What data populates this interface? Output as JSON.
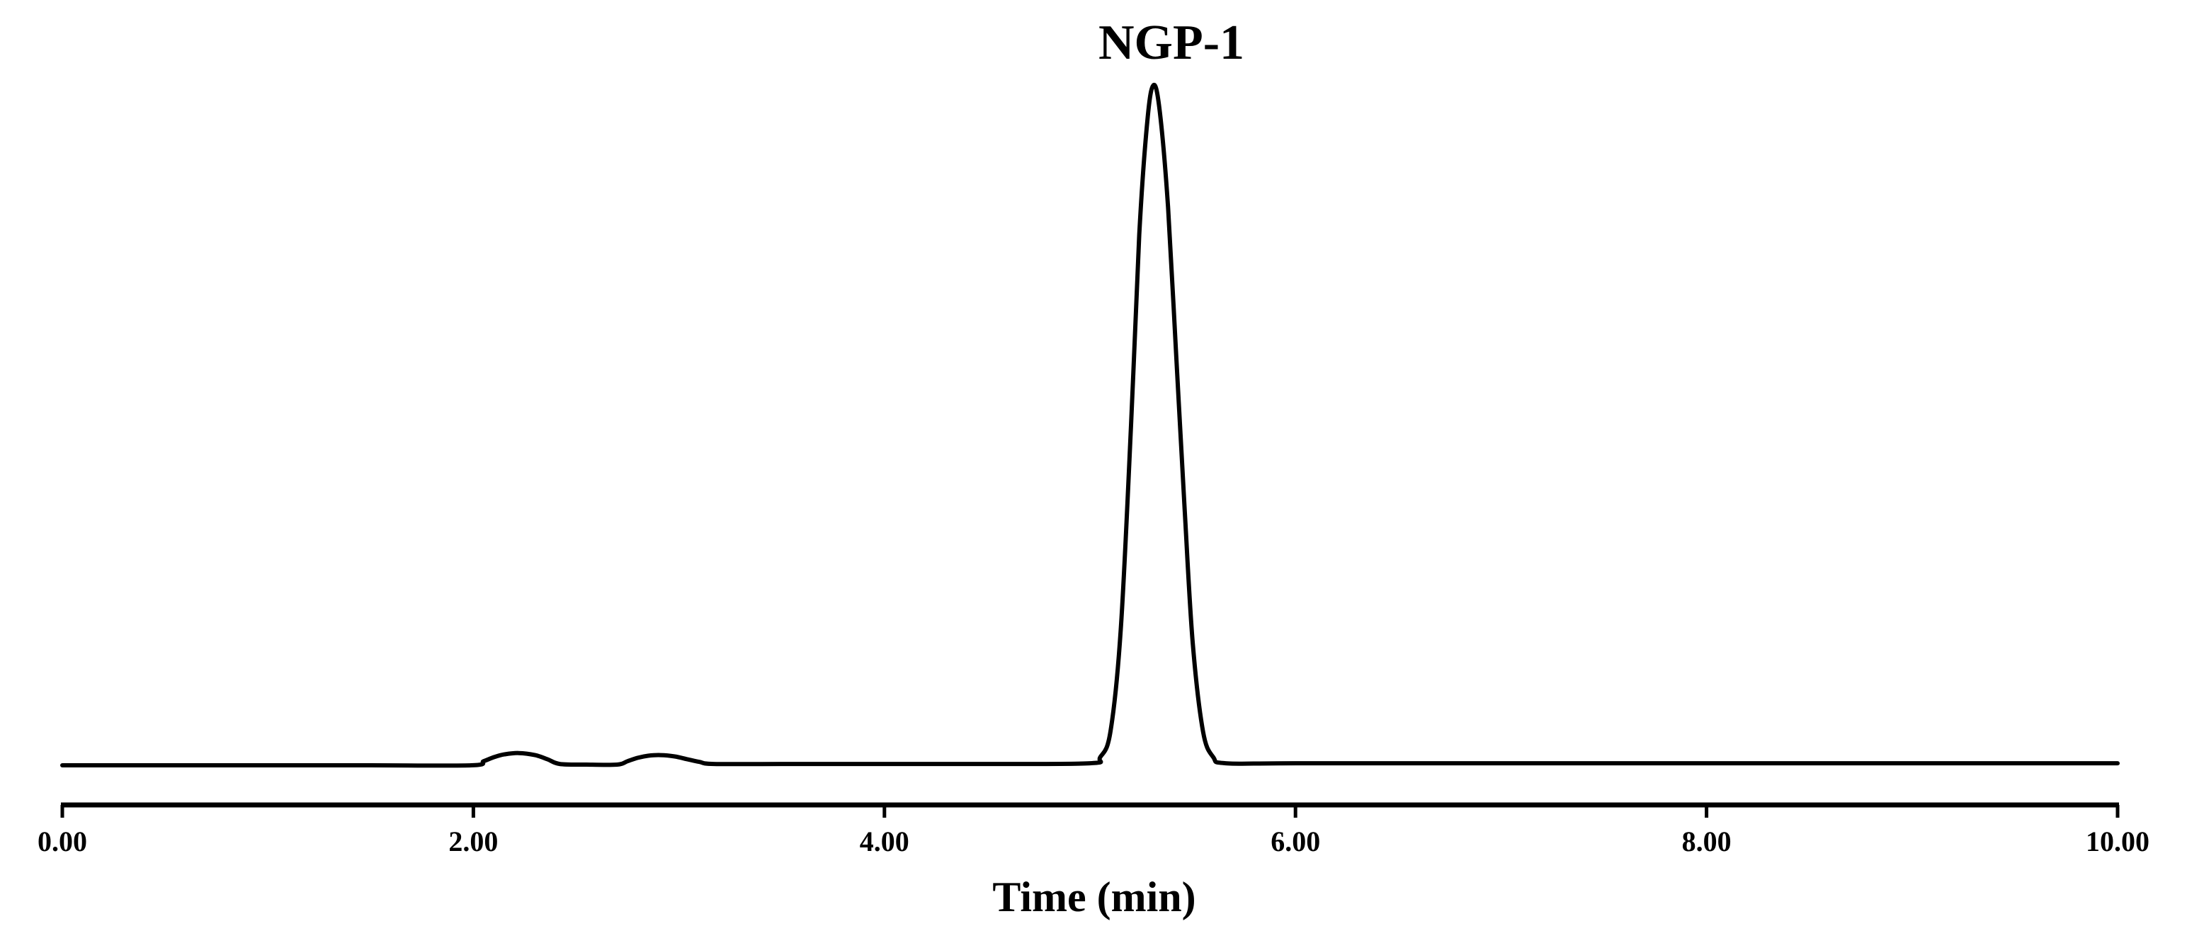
{
  "chart_data": {
    "type": "line",
    "title": "NGP-1",
    "xlabel": "Time (min)",
    "ylabel": "",
    "xlim": [
      0,
      10
    ],
    "ylim": [
      0,
      100
    ],
    "grid": false,
    "legend": "none",
    "x_ticks": [
      0,
      2,
      4,
      6,
      8,
      10
    ],
    "x_tick_labels": [
      "0.00",
      "2.00",
      "4.00",
      "6.00",
      "8.00",
      "10.00"
    ],
    "series": [
      {
        "color": "#000000",
        "x": [
          0.0,
          0.5,
          1.0,
          1.5,
          1.99,
          2.05,
          2.1,
          2.15,
          2.22,
          2.3,
          2.36,
          2.42,
          2.55,
          2.7,
          2.75,
          2.8,
          2.85,
          2.91,
          2.98,
          3.04,
          3.1,
          3.17,
          3.5,
          4.0,
          4.5,
          5.0,
          5.05,
          5.1,
          5.15,
          5.2,
          5.24,
          5.28,
          5.31,
          5.34,
          5.38,
          5.42,
          5.46,
          5.5,
          5.55,
          5.6,
          5.66,
          6.0,
          7.0,
          8.0,
          9.0,
          10.0
        ],
        "y": [
          0.0,
          0.0,
          0.0,
          0.0,
          0.0,
          0.6,
          1.2,
          1.6,
          1.8,
          1.5,
          0.9,
          0.2,
          0.1,
          0.1,
          0.6,
          1.1,
          1.4,
          1.5,
          1.3,
          0.9,
          0.5,
          0.2,
          0.2,
          0.2,
          0.2,
          0.3,
          1.2,
          5.0,
          20.0,
          50.0,
          78.0,
          95.0,
          100.0,
          96.0,
          82.0,
          60.0,
          38.0,
          18.0,
          5.0,
          1.2,
          0.3,
          0.3,
          0.3,
          0.3,
          0.3,
          0.3
        ]
      }
    ]
  }
}
